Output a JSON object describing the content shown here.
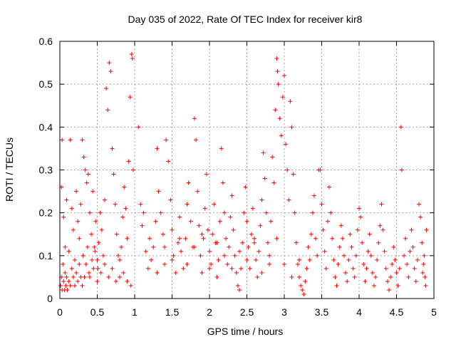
{
  "chart_data": {
    "type": "scatter",
    "title": "Day 035 of 2022, Rate Of TEC Index for receiver kir8",
    "xlabel": "GPS time / hours",
    "ylabel": "ROTI / TECUs",
    "xlim": [
      0,
      5
    ],
    "ylim": [
      0,
      0.6
    ],
    "x_ticks": [
      "0",
      "0.5",
      "1",
      "1.5",
      "2",
      "2.5",
      "3",
      "3.5",
      "4",
      "4.5",
      "5"
    ],
    "y_ticks": [
      "0",
      "0.1",
      "0.2",
      "0.3",
      "0.4",
      "0.5",
      "0.6"
    ],
    "grid": true,
    "marker": "plus",
    "color": "#ff0000",
    "series": [
      {
        "points": [
          [
            0.01,
            0.03
          ],
          [
            0.02,
            0.05
          ],
          [
            0.03,
            0.02
          ],
          [
            0.04,
            0.08
          ],
          [
            0.05,
            0.04
          ],
          [
            0.06,
            0.02
          ],
          [
            0.07,
            0.06
          ],
          [
            0.08,
            0.03
          ],
          [
            0.09,
            0.05
          ],
          [
            0.1,
            0.02
          ],
          [
            0.12,
            0.04
          ],
          [
            0.14,
            0.03
          ],
          [
            0.16,
            0.07
          ],
          [
            0.18,
            0.05
          ],
          [
            0.2,
            0.03
          ],
          [
            0.22,
            0.06
          ],
          [
            0.24,
            0.04
          ],
          [
            0.26,
            0.08
          ],
          [
            0.28,
            0.05
          ],
          [
            0.3,
            0.03
          ],
          [
            0.02,
            0.26
          ],
          [
            0.03,
            0.37
          ],
          [
            0.05,
            0.19
          ],
          [
            0.07,
            0.12
          ],
          [
            0.09,
            0.23
          ],
          [
            0.12,
            0.11
          ],
          [
            0.14,
            0.37
          ],
          [
            0.16,
            0.21
          ],
          [
            0.18,
            0.16
          ],
          [
            0.2,
            0.09
          ],
          [
            0.22,
            0.25
          ],
          [
            0.24,
            0.18
          ],
          [
            0.26,
            0.14
          ],
          [
            0.28,
            0.22
          ],
          [
            0.3,
            0.37
          ],
          [
            0.32,
            0.33
          ],
          [
            0.34,
            0.3
          ],
          [
            0.36,
            0.27
          ],
          [
            0.38,
            0.29
          ],
          [
            0.4,
            0.2
          ],
          [
            0.42,
            0.15
          ],
          [
            0.44,
            0.25
          ],
          [
            0.46,
            0.12
          ],
          [
            0.48,
            0.18
          ],
          [
            0.5,
            0.09
          ],
          [
            0.52,
            0.13
          ],
          [
            0.54,
            0.2
          ],
          [
            0.56,
            0.16
          ],
          [
            0.58,
            0.1
          ],
          [
            0.6,
            0.23
          ],
          [
            0.62,
            0.49
          ],
          [
            0.64,
            0.44
          ],
          [
            0.66,
            0.55
          ],
          [
            0.68,
            0.53
          ],
          [
            0.7,
            0.35
          ],
          [
            0.72,
            0.29
          ],
          [
            0.74,
            0.22
          ],
          [
            0.76,
            0.15
          ],
          [
            0.78,
            0.1
          ],
          [
            0.8,
            0.05
          ],
          [
            0.82,
            0.12
          ],
          [
            0.84,
            0.19
          ],
          [
            0.86,
            0.26
          ],
          [
            0.88,
            0.21
          ],
          [
            0.9,
            0.14
          ],
          [
            0.92,
            0.32
          ],
          [
            0.94,
            0.47
          ],
          [
            0.96,
            0.57
          ],
          [
            0.97,
            0.56
          ],
          [
            0.98,
            0.3
          ],
          [
            0.4,
            0.05
          ],
          [
            0.45,
            0.07
          ],
          [
            0.5,
            0.04
          ],
          [
            0.55,
            0.06
          ],
          [
            0.6,
            0.08
          ],
          [
            0.65,
            0.05
          ],
          [
            0.7,
            0.07
          ],
          [
            0.75,
            0.04
          ],
          [
            0.8,
            0.09
          ],
          [
            0.85,
            0.06
          ],
          [
            0.9,
            0.04
          ],
          [
            0.95,
            0.03
          ],
          [
            0.35,
            0.08
          ],
          [
            0.33,
            0.05
          ],
          [
            0.31,
            0.1
          ],
          [
            0.37,
            0.12
          ],
          [
            0.39,
            0.06
          ],
          [
            0.43,
            0.09
          ],
          [
            0.47,
            0.11
          ],
          [
            0.51,
            0.07
          ],
          [
            1.05,
            0.4
          ],
          [
            1.08,
            0.22
          ],
          [
            1.1,
            0.17
          ],
          [
            1.12,
            0.2
          ],
          [
            1.15,
            0.11
          ],
          [
            1.18,
            0.07
          ],
          [
            1.2,
            0.14
          ],
          [
            1.22,
            0.09
          ],
          [
            1.25,
            0.12
          ],
          [
            1.28,
            0.18
          ],
          [
            1.3,
            0.35
          ],
          [
            1.32,
            0.25
          ],
          [
            1.35,
            0.2
          ],
          [
            1.38,
            0.15
          ],
          [
            1.4,
            0.08
          ],
          [
            1.42,
            0.37
          ],
          [
            1.45,
            0.32
          ],
          [
            1.48,
            0.23
          ],
          [
            1.5,
            0.16
          ],
          [
            1.52,
            0.1
          ],
          [
            1.55,
            0.06
          ],
          [
            1.58,
            0.13
          ],
          [
            1.6,
            0.19
          ],
          [
            1.62,
            0.11
          ],
          [
            1.65,
            0.07
          ],
          [
            1.68,
            0.14
          ],
          [
            1.7,
            0.22
          ],
          [
            1.72,
            0.27
          ],
          [
            1.75,
            0.18
          ],
          [
            1.78,
            0.12
          ],
          [
            1.8,
            0.42
          ],
          [
            1.82,
            0.37
          ],
          [
            1.84,
            0.25
          ],
          [
            1.86,
            0.17
          ],
          [
            1.88,
            0.1
          ],
          [
            1.9,
            0.06
          ],
          [
            1.92,
            0.14
          ],
          [
            1.94,
            0.21
          ],
          [
            1.96,
            0.29
          ],
          [
            1.98,
            0.16
          ],
          [
            2.0,
            0.11
          ],
          [
            2.02,
            0.08
          ],
          [
            2.04,
            0.15
          ],
          [
            2.06,
            0.22
          ],
          [
            2.08,
            0.13
          ],
          [
            2.1,
            0.05
          ],
          [
            2.12,
            0.09
          ],
          [
            2.14,
            0.18
          ],
          [
            2.16,
            0.35
          ],
          [
            2.18,
            0.27
          ],
          [
            2.2,
            0.2
          ],
          [
            2.22,
            0.14
          ],
          [
            2.24,
            0.08
          ],
          [
            2.26,
            0.12
          ],
          [
            2.28,
            0.19
          ],
          [
            2.3,
            0.24
          ],
          [
            2.32,
            0.16
          ],
          [
            2.34,
            0.1
          ],
          [
            2.36,
            0.06
          ],
          [
            2.38,
            0.03
          ],
          [
            2.4,
            0.02
          ],
          [
            2.42,
            0.07
          ],
          [
            2.44,
            0.13
          ],
          [
            2.46,
            0.2
          ],
          [
            2.48,
            0.26
          ],
          [
            2.5,
            0.18
          ],
          [
            2.52,
            0.12
          ],
          [
            2.54,
            0.07
          ],
          [
            2.56,
            0.15
          ],
          [
            2.58,
            0.21
          ],
          [
            2.6,
            0.14
          ],
          [
            2.62,
            0.09
          ],
          [
            2.64,
            0.05
          ],
          [
            2.66,
            0.11
          ],
          [
            2.68,
            0.17
          ],
          [
            2.7,
            0.23
          ],
          [
            2.72,
            0.34
          ],
          [
            2.74,
            0.28
          ],
          [
            2.76,
            0.2
          ],
          [
            2.78,
            0.13
          ],
          [
            2.8,
            0.08
          ],
          [
            2.82,
            0.18
          ],
          [
            2.84,
            0.33
          ],
          [
            2.86,
            0.27
          ],
          [
            2.88,
            0.44
          ],
          [
            2.9,
            0.56
          ],
          [
            2.91,
            0.53
          ],
          [
            2.92,
            0.5
          ],
          [
            2.94,
            0.42
          ],
          [
            2.96,
            0.38
          ],
          [
            2.98,
            0.47
          ],
          [
            3.0,
            0.52
          ],
          [
            3.02,
            0.36
          ],
          [
            3.04,
            0.3
          ],
          [
            3.06,
            0.23
          ],
          [
            3.08,
            0.46
          ],
          [
            3.1,
            0.4
          ],
          [
            3.12,
            0.29
          ],
          [
            3.14,
            0.2
          ],
          [
            3.16,
            0.13
          ],
          [
            3.18,
            0.08
          ],
          [
            3.2,
            0.05
          ],
          [
            3.22,
            0.03
          ],
          [
            3.24,
            0.02
          ],
          [
            3.26,
            0.01
          ],
          [
            3.28,
            0.04
          ],
          [
            3.3,
            0.07
          ],
          [
            3.32,
            0.12
          ],
          [
            3.34,
            0.09
          ],
          [
            3.36,
            0.15
          ],
          [
            3.38,
            0.2
          ],
          [
            3.4,
            0.24
          ],
          [
            3.42,
            0.14
          ],
          [
            3.44,
            0.1
          ],
          [
            3.46,
            0.3
          ],
          [
            3.48,
            0.3
          ],
          [
            3.5,
            0.22
          ],
          [
            3.52,
            0.16
          ],
          [
            3.54,
            0.11
          ],
          [
            3.56,
            0.07
          ],
          [
            3.58,
            0.18
          ],
          [
            3.6,
            0.26
          ],
          [
            3.62,
            0.2
          ],
          [
            3.64,
            0.14
          ],
          [
            3.66,
            0.09
          ],
          [
            3.68,
            0.05
          ],
          [
            3.7,
            0.03
          ],
          [
            3.72,
            0.08
          ],
          [
            3.74,
            0.12
          ],
          [
            3.76,
            0.17
          ],
          [
            3.78,
            0.14
          ],
          [
            3.8,
            0.1
          ],
          [
            3.82,
            0.06
          ],
          [
            3.84,
            0.04
          ],
          [
            3.86,
            0.09
          ],
          [
            3.88,
            0.15
          ],
          [
            3.9,
            0.12
          ],
          [
            3.92,
            0.07
          ],
          [
            3.94,
            0.05
          ],
          [
            3.96,
            0.1
          ],
          [
            3.98,
            0.16
          ],
          [
            4.0,
            0.21
          ],
          [
            4.02,
            0.19
          ],
          [
            4.04,
            0.13
          ],
          [
            4.06,
            0.08
          ],
          [
            4.08,
            0.04
          ],
          [
            4.1,
            0.07
          ],
          [
            4.12,
            0.11
          ],
          [
            4.14,
            0.15
          ],
          [
            4.16,
            0.1
          ],
          [
            4.18,
            0.06
          ],
          [
            4.2,
            0.03
          ],
          [
            4.22,
            0.05
          ],
          [
            4.24,
            0.09
          ],
          [
            4.26,
            0.13
          ],
          [
            4.28,
            0.17
          ],
          [
            4.3,
            0.22
          ],
          [
            4.32,
            0.16
          ],
          [
            4.34,
            0.11
          ],
          [
            4.36,
            0.07
          ],
          [
            4.38,
            0.04
          ],
          [
            4.4,
            0.02
          ],
          [
            4.42,
            0.05
          ],
          [
            4.44,
            0.08
          ],
          [
            4.46,
            0.12
          ],
          [
            4.48,
            0.09
          ],
          [
            4.5,
            0.06
          ],
          [
            4.52,
            0.03
          ],
          [
            4.54,
            0.07
          ],
          [
            4.56,
            0.4
          ],
          [
            4.57,
            0.3
          ],
          [
            4.6,
            0.1
          ],
          [
            4.62,
            0.14
          ],
          [
            4.64,
            0.08
          ],
          [
            4.66,
            0.05
          ],
          [
            4.68,
            0.11
          ],
          [
            4.7,
            0.16
          ],
          [
            4.72,
            0.12
          ],
          [
            4.74,
            0.07
          ],
          [
            4.76,
            0.04
          ],
          [
            4.78,
            0.09
          ],
          [
            4.8,
            0.22
          ],
          [
            4.82,
            0.19
          ],
          [
            4.84,
            0.13
          ],
          [
            4.86,
            0.08
          ],
          [
            4.88,
            0.05
          ],
          [
            4.89,
            0.03
          ],
          [
            4.9,
            0.16
          ],
          [
            4.87,
            0.1
          ],
          [
            4.85,
            0.06
          ],
          [
            1.3,
            0.06
          ],
          [
            1.4,
            0.12
          ],
          [
            1.5,
            0.09
          ],
          [
            1.6,
            0.14
          ],
          [
            1.7,
            0.08
          ],
          [
            1.8,
            0.12
          ],
          [
            1.9,
            0.15
          ],
          [
            2.0,
            0.07
          ],
          [
            2.1,
            0.13
          ],
          [
            2.2,
            0.1
          ],
          [
            2.3,
            0.07
          ],
          [
            2.4,
            0.11
          ],
          [
            2.5,
            0.09
          ],
          [
            2.6,
            0.13
          ],
          [
            2.7,
            0.06
          ],
          [
            2.8,
            0.1
          ],
          [
            2.9,
            0.14
          ],
          [
            3.0,
            0.08
          ],
          [
            3.1,
            0.05
          ],
          [
            3.2,
            0.09
          ]
        ]
      }
    ]
  }
}
